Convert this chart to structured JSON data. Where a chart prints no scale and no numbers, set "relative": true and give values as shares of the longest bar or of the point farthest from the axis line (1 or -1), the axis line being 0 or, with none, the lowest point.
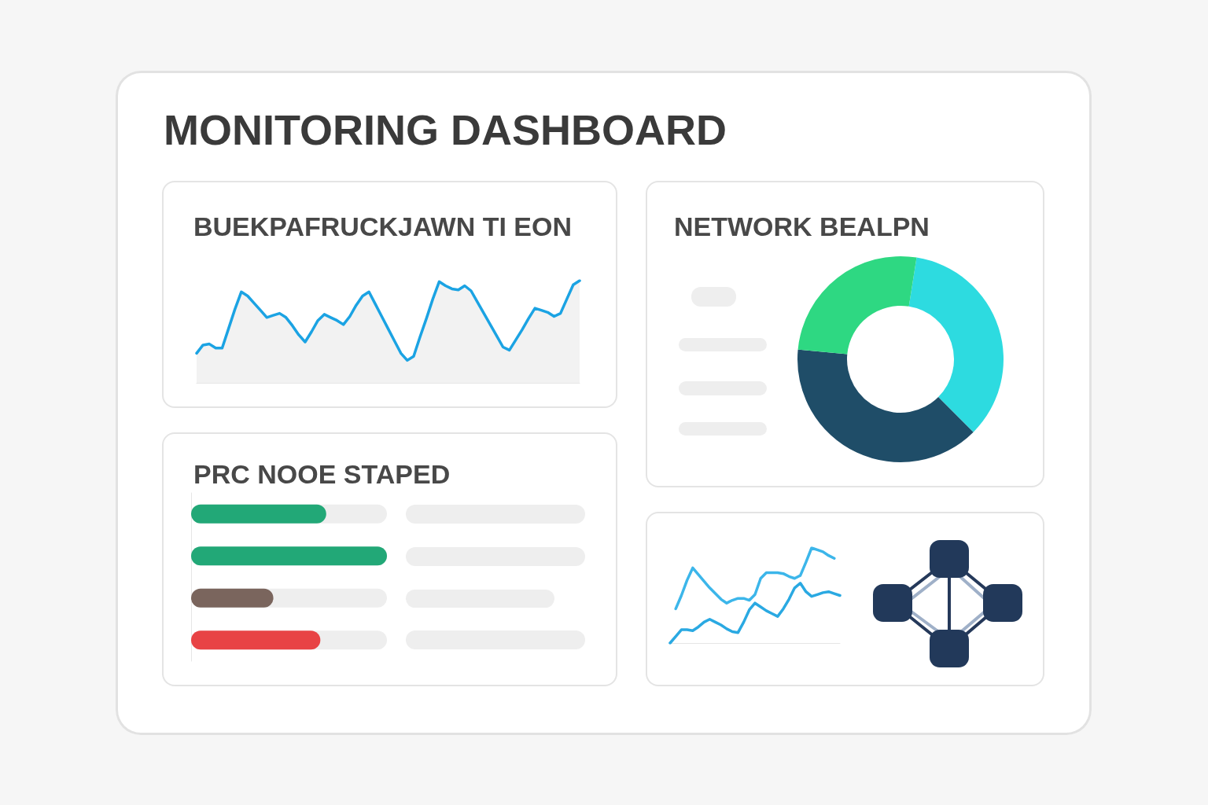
{
  "chart_data": [
    {
      "type": "other",
      "title": "MONITORING DASHBOARD"
    },
    {
      "type": "area",
      "title": "BUEKPAFRUCKJAWN TI EON",
      "relative": true,
      "color": "#1ba3e3",
      "categories": [
        null,
        null,
        null,
        null,
        null,
        null,
        null,
        null,
        null,
        null,
        null,
        null,
        null,
        null,
        null,
        null,
        null,
        null,
        null,
        null,
        null,
        null,
        null,
        null,
        null,
        null,
        null,
        null,
        null,
        null,
        null,
        null,
        null,
        null,
        null,
        null,
        null,
        null,
        null,
        null,
        null,
        null,
        null,
        null,
        null,
        null,
        null,
        null,
        null,
        null,
        null,
        null,
        null,
        null,
        null,
        null,
        null,
        null,
        null,
        null,
        null
      ],
      "values": [
        0.29,
        0.37,
        0.38,
        0.34,
        0.34,
        0.53,
        0.72,
        0.89,
        0.85,
        0.78,
        0.71,
        0.64,
        0.66,
        0.68,
        0.64,
        0.56,
        0.47,
        0.4,
        0.5,
        0.61,
        0.67,
        0.64,
        0.61,
        0.57,
        0.65,
        0.76,
        0.85,
        0.89,
        0.77,
        0.65,
        0.53,
        0.41,
        0.29,
        0.22,
        0.26,
        0.45,
        0.63,
        0.82,
        0.99,
        0.95,
        0.92,
        0.91,
        0.95,
        0.9,
        0.79,
        0.68,
        0.57,
        0.46,
        0.35,
        0.32,
        0.42,
        0.52,
        0.63,
        0.73,
        0.71,
        0.69,
        0.65,
        0.68,
        0.82,
        0.96,
        1
      ]
    },
    {
      "type": "donut",
      "title": "NETWORK BEALPN",
      "categories": [
        null,
        null,
        null
      ],
      "values": [
        35,
        39,
        26
      ],
      "colors": [
        "#2ddbe0",
        "#1f4d68",
        "#2ed882"
      ]
    },
    {
      "type": "bar",
      "title": "PRC NOOE STAPED",
      "orientation": "horizontal",
      "relative": true,
      "categories": [
        null,
        null,
        null,
        null
      ],
      "values": [
        0.69,
        1,
        0.42,
        0.66
      ],
      "colors": [
        "#22a877",
        "#22a877",
        "#7a655d",
        "#e84345"
      ]
    },
    {
      "type": "line",
      "relative": true,
      "categories": [
        null,
        null,
        null,
        null,
        null,
        null,
        null,
        null,
        null,
        null,
        null,
        null,
        null,
        null,
        null,
        null,
        null,
        null,
        null,
        null,
        null,
        null,
        null,
        null,
        null,
        null,
        null,
        null,
        null,
        null,
        null
      ],
      "series": [
        {
          "color": "#3cb6ea",
          "values": [
            null,
            0.36,
            0.5,
            0.66,
            0.79,
            0.72,
            0.65,
            0.58,
            0.52,
            0.46,
            0.42,
            0.45,
            0.47,
            0.47,
            0.45,
            0.51,
            0.68,
            0.74,
            0.74,
            0.74,
            0.73,
            0.7,
            0.68,
            0.71,
            0.85,
            1,
            0.98,
            0.96,
            0.92,
            0.89,
            null
          ]
        },
        {
          "color": "#2aa9e2",
          "values": [
            0,
            0.07,
            0.14,
            0.14,
            0.13,
            0.17,
            0.22,
            0.25,
            0.22,
            0.19,
            0.15,
            0.12,
            0.11,
            0.22,
            0.35,
            0.42,
            0.38,
            0.34,
            0.31,
            0.28,
            0.36,
            0.46,
            0.58,
            0.63,
            0.54,
            0.49,
            0.51,
            0.53,
            0.54,
            0.52,
            0.5
          ]
        }
      ]
    }
  ]
}
